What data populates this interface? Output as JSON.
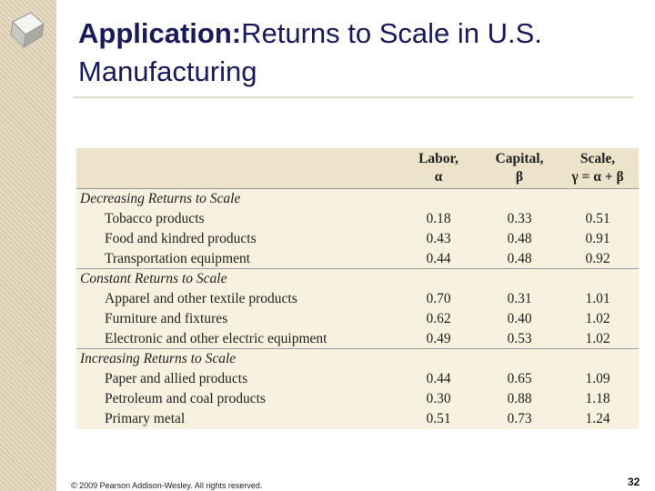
{
  "header": {
    "title_bold": "Application:",
    "title_rest": "Returns to Scale in U.S. Manufacturing"
  },
  "table": {
    "columns": [
      {
        "line1": "Labor,",
        "line2": "α"
      },
      {
        "line1": "Capital,",
        "line2": "β"
      },
      {
        "line1": "Scale,",
        "line2": "γ = α + β"
      }
    ],
    "groups": [
      {
        "name": "Decreasing Returns to Scale",
        "rows": [
          {
            "label": "Tobacco products",
            "values": [
              "0.18",
              "0.33",
              "0.51"
            ]
          },
          {
            "label": "Food and kindred products",
            "values": [
              "0.43",
              "0.48",
              "0.91"
            ]
          },
          {
            "label": "Transportation equipment",
            "values": [
              "0.44",
              "0.48",
              "0.92"
            ]
          }
        ]
      },
      {
        "name": "Constant Returns to Scale",
        "rows": [
          {
            "label": "Apparel and other textile products",
            "values": [
              "0.70",
              "0.31",
              "1.01"
            ]
          },
          {
            "label": "Furniture and fixtures",
            "values": [
              "0.62",
              "0.40",
              "1.02"
            ]
          },
          {
            "label": "Electronic and other electric equipment",
            "values": [
              "0.49",
              "0.53",
              "1.02"
            ]
          }
        ]
      },
      {
        "name": "Increasing Returns to Scale",
        "rows": [
          {
            "label": "Paper and allied products",
            "values": [
              "0.44",
              "0.65",
              "1.09"
            ]
          },
          {
            "label": "Petroleum and coal products",
            "values": [
              "0.30",
              "0.88",
              "1.18"
            ]
          },
          {
            "label": "Primary metal",
            "values": [
              "0.51",
              "0.73",
              "1.24"
            ]
          }
        ]
      }
    ]
  },
  "footer": {
    "copyright": "© 2009 Pearson Addison-Wesley. All rights reserved.",
    "page": "32"
  }
}
